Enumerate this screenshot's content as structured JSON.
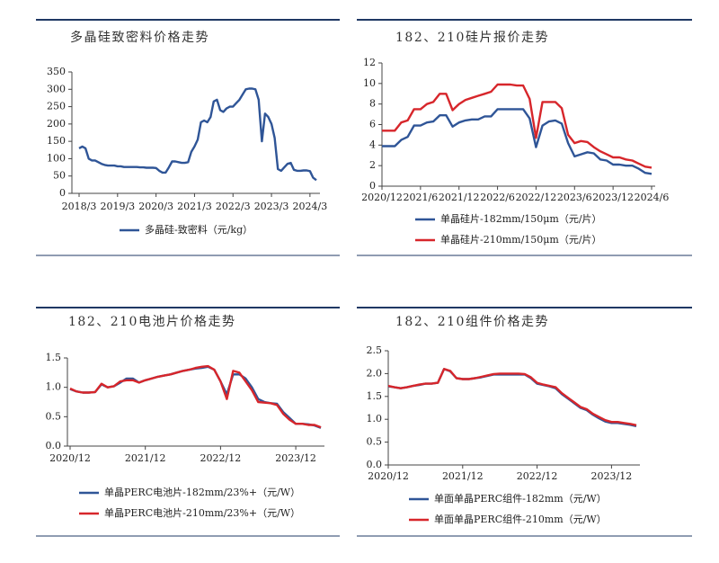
{
  "chart_data": [
    {
      "type": "line",
      "title": "多晶硅致密料价格走势",
      "categories": [
        "2018/3",
        null,
        null,
        null,
        null,
        null,
        null,
        null,
        null,
        null,
        null,
        null,
        "2019/3",
        null,
        null,
        null,
        null,
        null,
        null,
        null,
        null,
        null,
        null,
        null,
        "2020/3",
        null,
        null,
        null,
        null,
        null,
        null,
        null,
        null,
        null,
        null,
        null,
        "2021/3",
        null,
        null,
        null,
        null,
        null,
        null,
        null,
        null,
        null,
        null,
        null,
        "2022/3",
        null,
        null,
        null,
        null,
        null,
        null,
        null,
        null,
        null,
        null,
        null,
        "2023/3",
        null,
        null,
        null,
        null,
        null,
        null,
        null,
        null,
        null,
        null,
        null,
        "2024/3",
        null,
        null
      ],
      "series": [
        {
          "name": "多晶硅-致密料（元/kg）",
          "color": "#2f5597",
          "values": [
            130,
            135,
            130,
            100,
            95,
            95,
            90,
            85,
            82,
            80,
            80,
            80,
            78,
            78,
            76,
            76,
            76,
            76,
            76,
            75,
            75,
            74,
            74,
            74,
            73,
            65,
            60,
            60,
            75,
            92,
            92,
            90,
            88,
            88,
            90,
            120,
            135,
            155,
            205,
            210,
            205,
            220,
            265,
            270,
            240,
            235,
            245,
            250,
            250,
            260,
            270,
            285,
            300,
            302,
            302,
            300,
            270,
            150,
            230,
            220,
            200,
            160,
            70,
            65,
            75,
            85,
            88,
            68,
            65,
            65,
            66,
            66,
            64,
            45,
            38
          ]
        }
      ],
      "ylim": [
        0,
        350
      ],
      "yticks": [
        0,
        50,
        100,
        150,
        200,
        250,
        300,
        350
      ]
    },
    {
      "type": "line",
      "title": "182、210硅片报价走势",
      "categories": [
        "2020/12",
        null,
        null,
        null,
        null,
        null,
        "2021/6",
        null,
        null,
        null,
        null,
        null,
        "2021/12",
        null,
        null,
        null,
        null,
        null,
        "2022/6",
        null,
        null,
        null,
        null,
        null,
        "2022/12",
        null,
        null,
        null,
        null,
        null,
        "2023/6",
        null,
        null,
        null,
        null,
        null,
        "2023/12",
        null,
        null,
        null,
        null,
        null,
        "2024/6"
      ],
      "series": [
        {
          "name": "单晶硅片-182mm/150μm（元/片）",
          "color": "#2f5597",
          "values": [
            3.9,
            3.9,
            3.9,
            4.5,
            4.8,
            5.9,
            5.9,
            6.2,
            6.3,
            6.9,
            6.9,
            5.8,
            6.2,
            6.4,
            6.5,
            6.5,
            6.8,
            6.8,
            7.5,
            7.5,
            7.5,
            7.5,
            7.5,
            6.6,
            3.8,
            5.9,
            6.3,
            6.4,
            6.1,
            4.2,
            2.9,
            3.1,
            3.3,
            3.2,
            2.6,
            2.5,
            2.1,
            2.1,
            2.0,
            2.0,
            1.7,
            1.3,
            1.2
          ]
        },
        {
          "name": "单晶硅片-210mm/150μm（元/片）",
          "color": "#d7262b",
          "values": [
            5.4,
            5.4,
            5.4,
            6.2,
            6.4,
            7.5,
            7.5,
            8.0,
            8.2,
            9.0,
            9.0,
            7.4,
            8.0,
            8.4,
            8.6,
            8.8,
            9.0,
            9.2,
            9.9,
            9.9,
            9.9,
            9.8,
            9.8,
            8.5,
            4.7,
            8.2,
            8.2,
            8.2,
            7.6,
            5.0,
            4.2,
            4.4,
            4.3,
            3.8,
            3.4,
            3.1,
            2.8,
            2.8,
            2.6,
            2.5,
            2.2,
            1.9,
            1.8
          ]
        }
      ],
      "ylim": [
        0,
        12
      ],
      "yticks": [
        0,
        2,
        4,
        6,
        8,
        10,
        12
      ]
    },
    {
      "type": "line",
      "title": "182、210电池片价格走势",
      "categories": [
        "2020/12",
        null,
        null,
        null,
        null,
        null,
        null,
        null,
        null,
        null,
        null,
        null,
        "2021/12",
        null,
        null,
        null,
        null,
        null,
        null,
        null,
        null,
        null,
        null,
        null,
        "2022/12",
        null,
        null,
        null,
        null,
        null,
        null,
        null,
        null,
        null,
        null,
        null,
        "2023/12",
        null,
        null,
        null,
        null
      ],
      "series": [
        {
          "name": "单晶PERC电池片-182mm/23%+（元/W）",
          "color": "#2f5597",
          "values": [
            0.97,
            0.93,
            0.91,
            0.91,
            0.92,
            1.05,
            1.0,
            1.02,
            1.08,
            1.15,
            1.15,
            1.08,
            1.12,
            1.15,
            1.18,
            1.2,
            1.22,
            1.25,
            1.28,
            1.3,
            1.32,
            1.33,
            1.35,
            1.3,
            1.1,
            0.88,
            1.22,
            1.22,
            1.15,
            1.0,
            0.8,
            0.75,
            0.73,
            0.72,
            0.58,
            0.48,
            0.38,
            0.38,
            0.37,
            0.35,
            0.31
          ]
        },
        {
          "name": "单晶PERC电池片-210mm/23%+（元/W）",
          "color": "#d7262b",
          "values": [
            0.98,
            0.93,
            0.91,
            0.91,
            0.92,
            1.06,
            1.0,
            1.02,
            1.1,
            1.12,
            1.12,
            1.08,
            1.12,
            1.15,
            1.18,
            1.2,
            1.22,
            1.25,
            1.28,
            1.3,
            1.33,
            1.35,
            1.36,
            1.3,
            1.1,
            0.8,
            1.28,
            1.25,
            1.1,
            0.95,
            0.75,
            0.74,
            0.73,
            0.7,
            0.55,
            0.45,
            0.38,
            0.38,
            0.36,
            0.36,
            0.32
          ]
        }
      ],
      "ylim": [
        0,
        1.5
      ],
      "yticks": [
        {
          "value": 0,
          "label": "0.0"
        },
        {
          "value": 0.5,
          "label": "0.5"
        },
        {
          "value": 1,
          "label": "1.0"
        },
        {
          "value": 1.5,
          "label": "1.5"
        }
      ]
    },
    {
      "type": "line",
      "title": "182、210组件价格走势",
      "categories": [
        "2020/12",
        null,
        null,
        null,
        null,
        null,
        null,
        null,
        null,
        null,
        null,
        null,
        "2021/12",
        null,
        null,
        null,
        null,
        null,
        null,
        null,
        null,
        null,
        null,
        null,
        "2022/12",
        null,
        null,
        null,
        null,
        null,
        null,
        null,
        null,
        null,
        null,
        null,
        "2023/12",
        null,
        null,
        null,
        null
      ],
      "series": [
        {
          "name": "单面单晶PERC组件-182mm（元/W）",
          "color": "#2f5597",
          "values": [
            1.72,
            1.7,
            1.68,
            1.7,
            1.73,
            1.75,
            1.78,
            1.78,
            1.8,
            2.1,
            2.05,
            1.9,
            1.88,
            1.88,
            1.9,
            1.92,
            1.95,
            1.98,
            1.98,
            1.98,
            1.98,
            1.98,
            1.98,
            1.9,
            1.78,
            1.75,
            1.72,
            1.68,
            1.55,
            1.45,
            1.35,
            1.25,
            1.2,
            1.1,
            1.02,
            0.95,
            0.92,
            0.92,
            0.9,
            0.88,
            0.85
          ]
        },
        {
          "name": "单面单晶PERC组件-210mm（元/W）",
          "color": "#d7262b",
          "values": [
            1.73,
            1.7,
            1.68,
            1.7,
            1.73,
            1.76,
            1.78,
            1.78,
            1.8,
            2.1,
            2.06,
            1.9,
            1.88,
            1.88,
            1.9,
            1.93,
            1.96,
            1.99,
            2.0,
            2.0,
            2.0,
            2.0,
            1.99,
            1.92,
            1.8,
            1.76,
            1.73,
            1.7,
            1.57,
            1.47,
            1.37,
            1.27,
            1.22,
            1.12,
            1.05,
            0.98,
            0.94,
            0.94,
            0.92,
            0.9,
            0.87
          ]
        }
      ],
      "ylim": [
        0,
        2.5
      ],
      "yticks": [
        {
          "value": 0,
          "label": "0.0"
        },
        {
          "value": 0.5,
          "label": "0.5"
        },
        {
          "value": 1,
          "label": "1.0"
        },
        {
          "value": 1.5,
          "label": "1.5"
        },
        {
          "value": 2,
          "label": "2.0"
        },
        {
          "value": 2.5,
          "label": "2.5"
        }
      ]
    }
  ]
}
